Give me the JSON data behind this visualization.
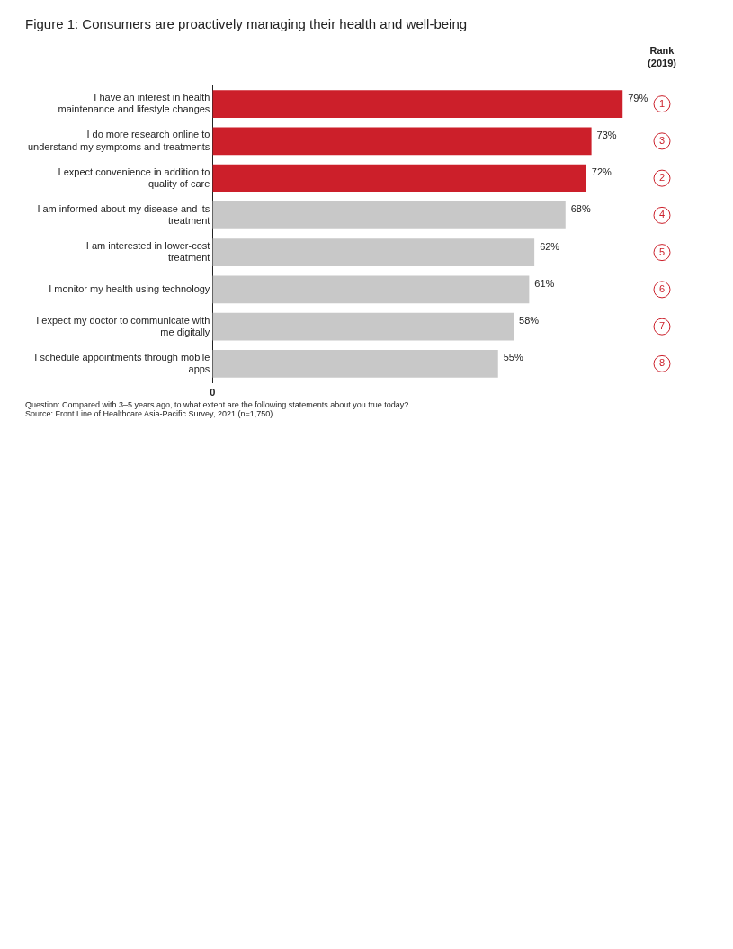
{
  "chart_data": {
    "type": "bar",
    "orientation": "horizontal",
    "title": "Figure 1: Consumers are proactively managing their health and well-being",
    "categories": [
      "I have an interest in health maintenance and lifestyle changes",
      "I do more research online to understand my symptoms and treatments",
      "I expect convenience in addition to quality of care",
      "I am informed about my disease and its treatment",
      "I am interested in lower-cost treatment",
      "I monitor my health using technology",
      "I expect my doctor to communicate with me digitally",
      "I schedule appointments through mobile apps"
    ],
    "values": [
      79,
      73,
      72,
      68,
      62,
      61,
      58,
      55
    ],
    "value_labels": [
      "79%",
      "73%",
      "72%",
      "68%",
      "62%",
      "61%",
      "58%",
      "55%"
    ],
    "colors": [
      "#cc1f2a",
      "#cc1f2a",
      "#cc1f2a",
      "#c8c8c8",
      "#c8c8c8",
      "#c8c8c8",
      "#c8c8c8",
      "#c8c8c8"
    ],
    "grid": false,
    "legend": false,
    "annotations": [
      "Rank (2019)",
      "1",
      "3",
      "2",
      "4",
      "5",
      "6",
      "7",
      "8",
      "0",
      "Question: Compared with 3–5 years ago, to what extent are the following statements about you true today?",
      "Source: Front Line of Healthcare Asia-Pacific Survey, 2021 (n=1,750)"
    ]
  }
}
